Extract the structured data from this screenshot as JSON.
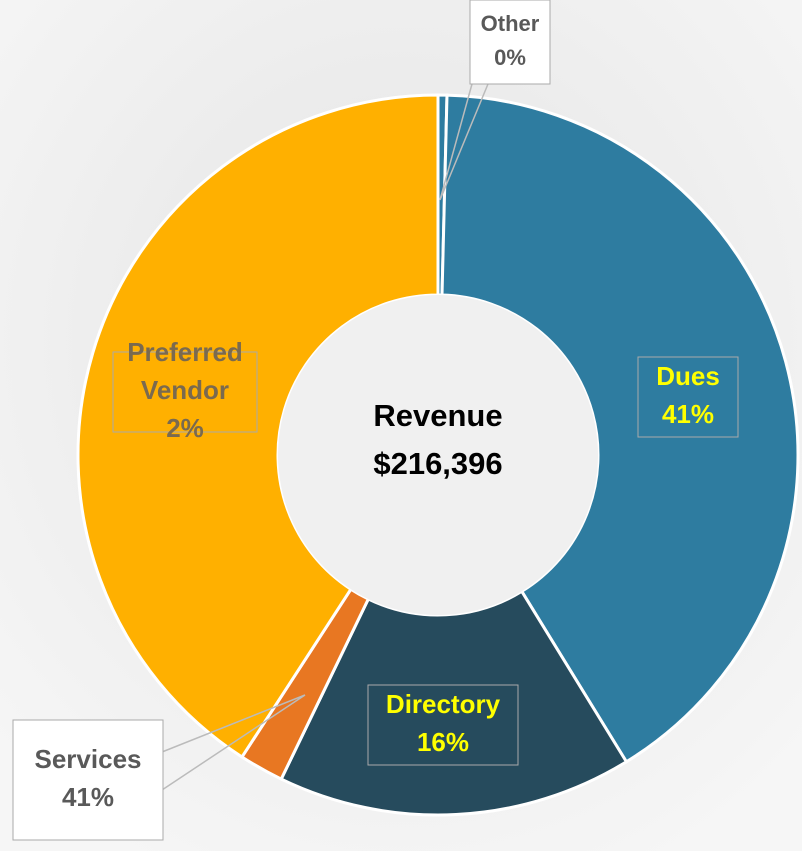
{
  "chart_data": {
    "type": "donut",
    "center_label": [
      "Revenue",
      "$216,396"
    ],
    "categories": [
      "Other",
      "Dues",
      "Directory",
      "Preferred Vendor",
      "Services"
    ],
    "values": [
      0.4,
      41,
      16,
      2,
      41
    ],
    "value_labels": [
      "0%",
      "41%",
      "16%",
      "2%",
      "41%"
    ],
    "colors": [
      "#2e7ca0",
      "#2e7ca0",
      "#264b5d",
      "#e87722",
      "#ffb000"
    ]
  }
}
